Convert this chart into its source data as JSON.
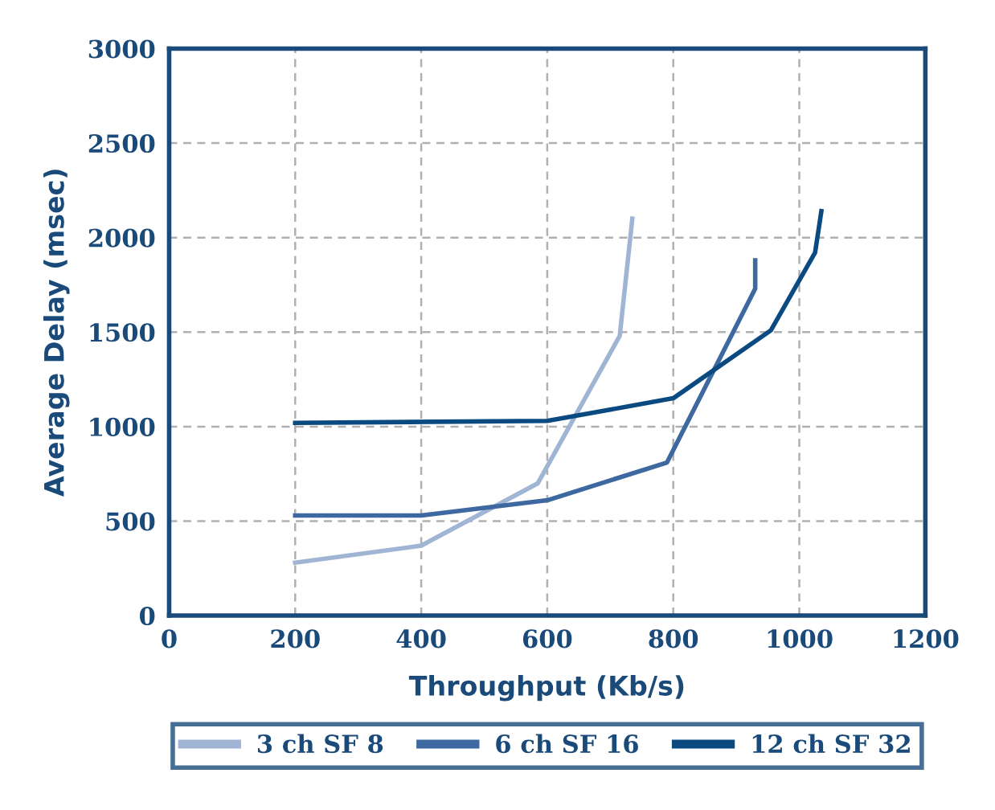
{
  "chart_data": {
    "type": "line",
    "xlabel": "Throughput (Kb/s)",
    "ylabel": "Average Delay (msec)",
    "xlim": [
      0,
      1200
    ],
    "xticks": [
      0,
      200,
      400,
      600,
      800,
      1000,
      1200
    ],
    "ylim": [
      0,
      3000
    ],
    "yticks": [
      0,
      500,
      1000,
      1500,
      2000,
      2500,
      3000
    ],
    "grid": true,
    "legend": "bottom",
    "marker": "none",
    "line_style": "solid",
    "series": [
      {
        "name": "3 ch SF 8",
        "color": "#a0b4d4",
        "x": [
          200,
          400,
          585,
          715,
          735
        ],
        "values": [
          280,
          370,
          700,
          1480,
          2100
        ]
      },
      {
        "name": "6 ch SF 16",
        "color": "#3d68a0",
        "x": [
          200,
          400,
          600,
          790,
          930,
          930
        ],
        "values": [
          530,
          530,
          610,
          810,
          1730,
          1880
        ]
      },
      {
        "name": "12 ch SF 32",
        "color": "#0a4a80",
        "x": [
          200,
          600,
          800,
          955,
          1025,
          1035
        ],
        "values": [
          1020,
          1030,
          1150,
          1510,
          1920,
          2140
        ]
      }
    ]
  }
}
